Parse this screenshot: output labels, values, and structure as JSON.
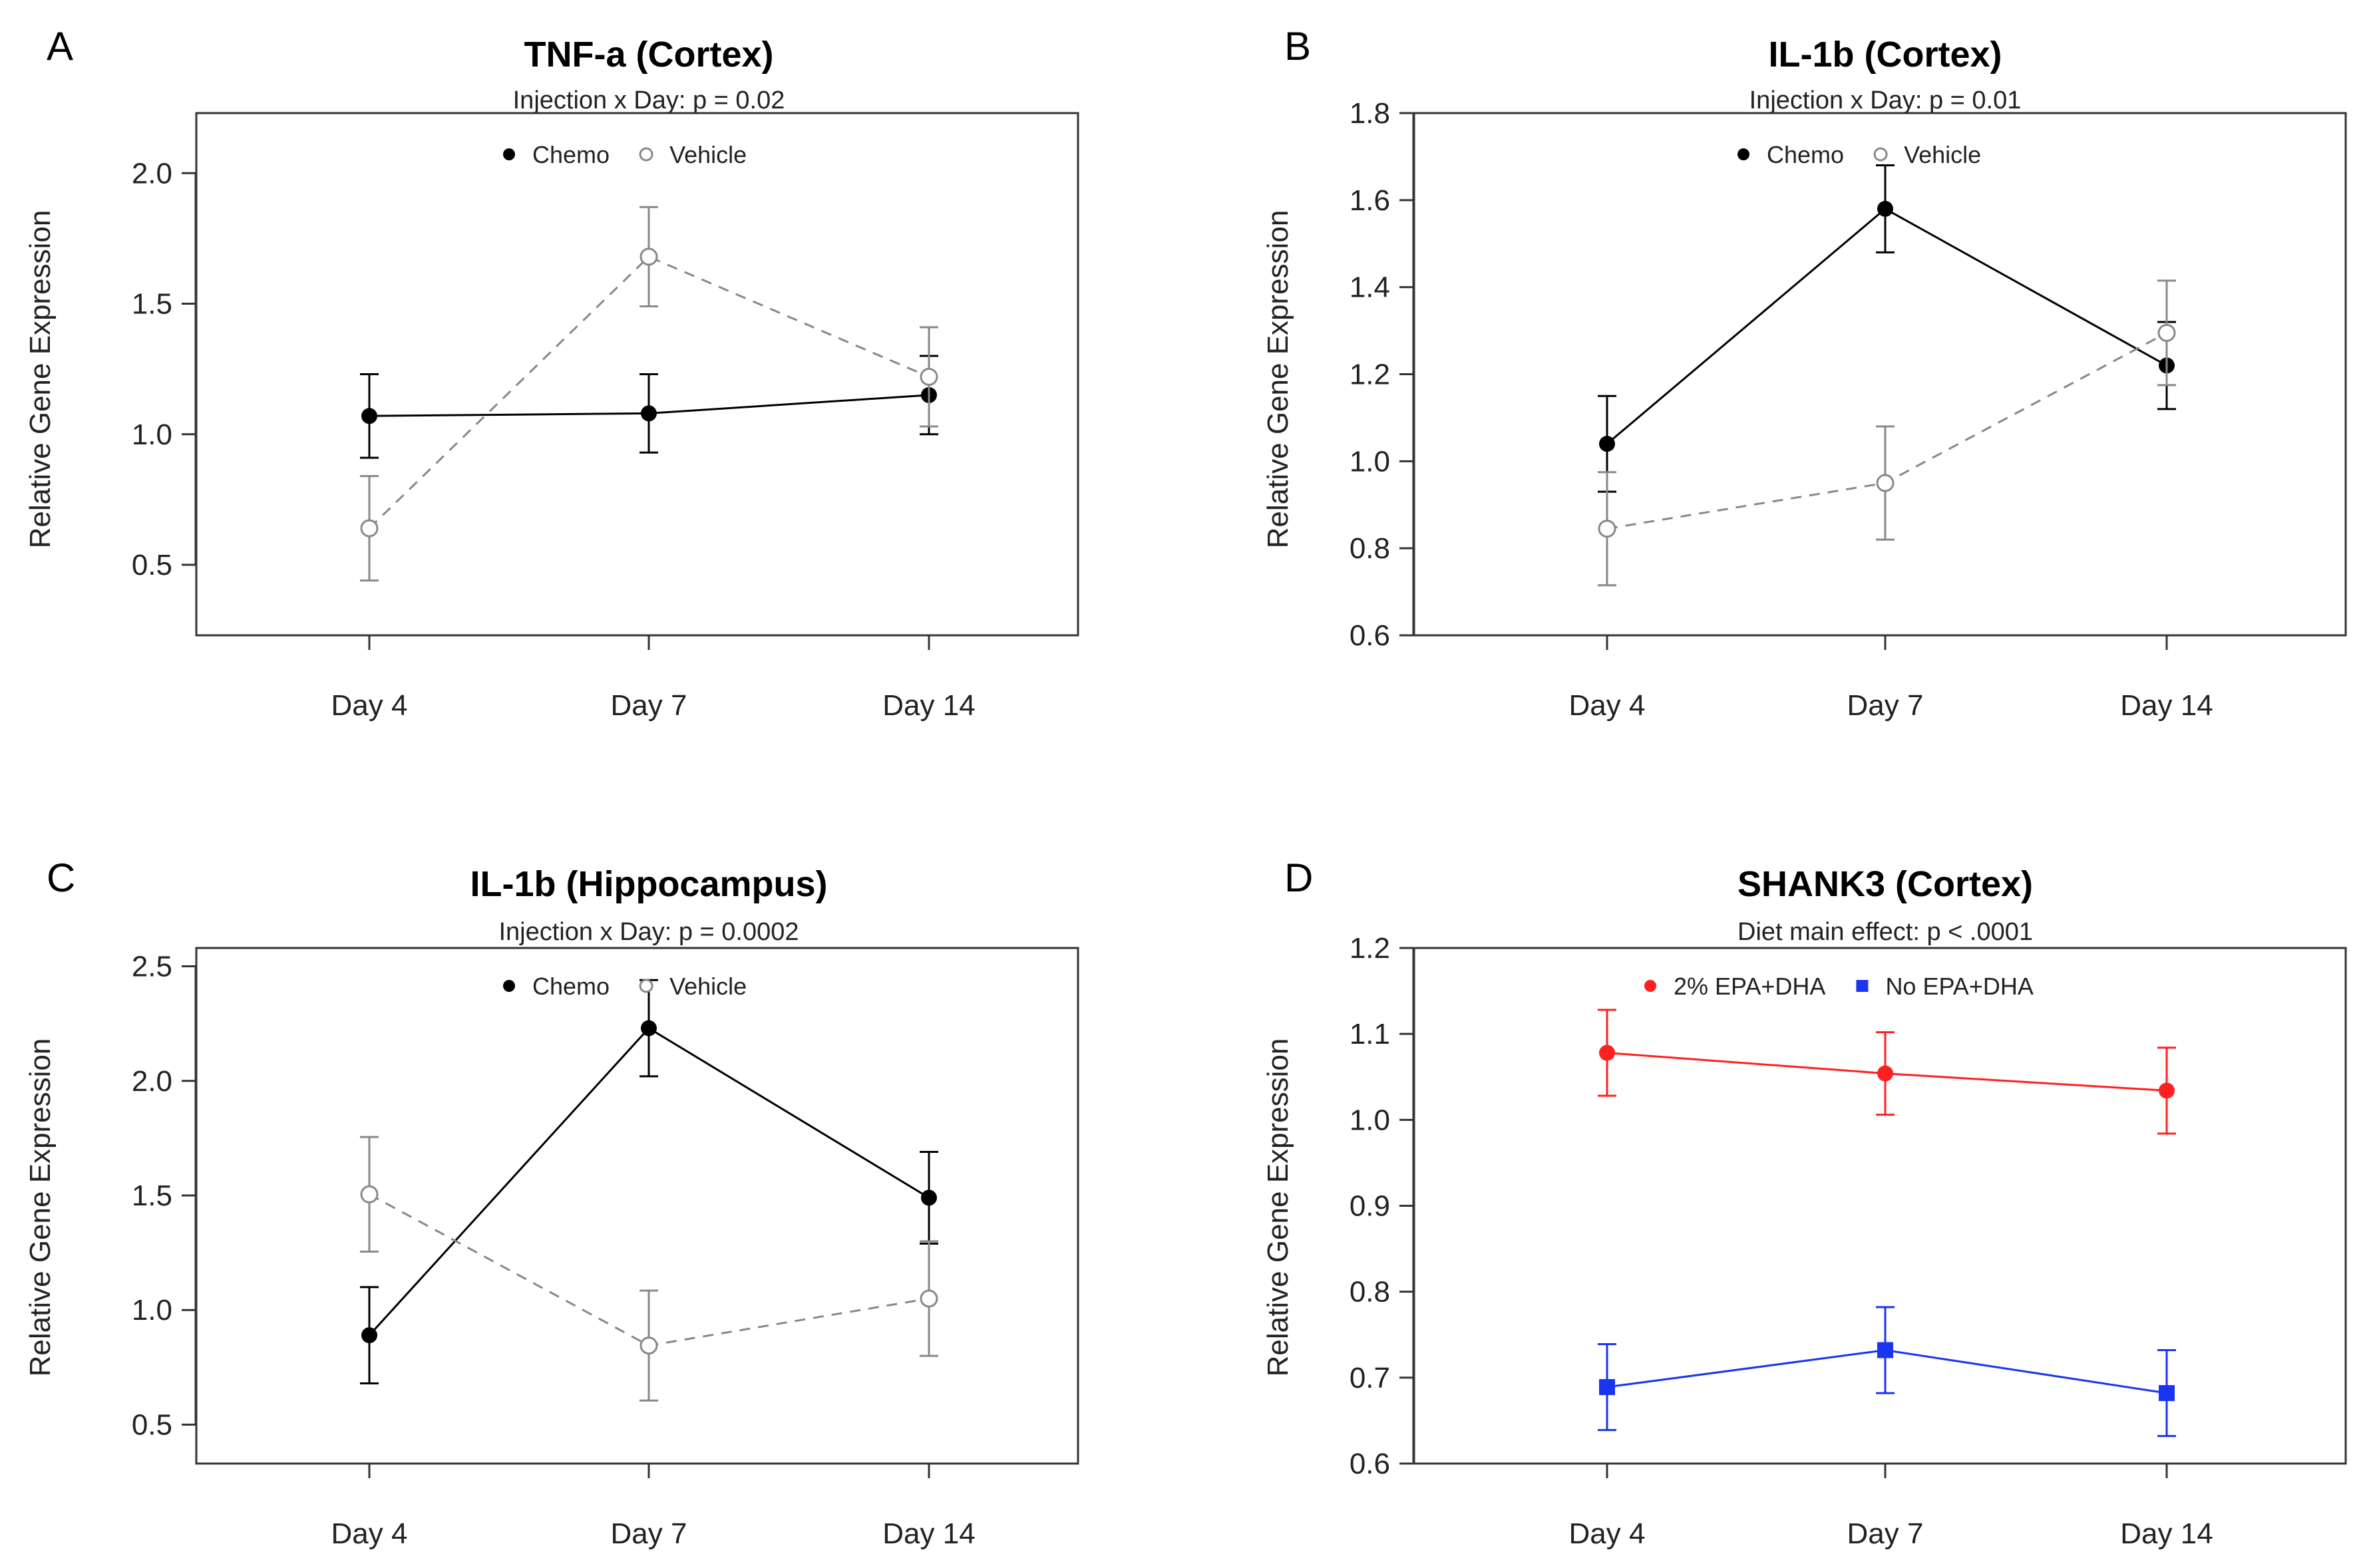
{
  "chart_data": [
    {
      "id": "A",
      "type": "line",
      "panel_label": "A",
      "title": "TNF-a (Cortex)",
      "subtitle": "Injection x Day: p = 0.02",
      "ylabel": "Relative Gene Expression",
      "categories": [
        "Day 4",
        "Day 7",
        "Day 14"
      ],
      "ylim": [
        0.23,
        2.23
      ],
      "yticks": [
        0.5,
        1.0,
        1.5,
        2.0
      ],
      "ytick_labels": [
        "0.5",
        "1.0",
        "1.5",
        "2.0"
      ],
      "legend": {
        "placement": "top-center"
      },
      "series": [
        {
          "name": "Chemo",
          "marker": "filled-circle",
          "color": "#000000",
          "line": "solid",
          "values": [
            1.07,
            1.08,
            1.15
          ],
          "errors": [
            0.16,
            0.15,
            0.15
          ]
        },
        {
          "name": "Vehicle",
          "marker": "open-circle",
          "color": "#888888",
          "line": "dashed",
          "values": [
            0.64,
            1.68,
            1.22
          ],
          "errors": [
            0.2,
            0.19,
            0.19
          ]
        }
      ]
    },
    {
      "id": "B",
      "type": "line",
      "panel_label": "B",
      "title": "IL-1b (Cortex)",
      "subtitle": "Injection x Day: p = 0.01",
      "ylabel": "Relative Gene Expression",
      "categories": [
        "Day 4",
        "Day 7",
        "Day 14"
      ],
      "ylim": [
        0.6,
        1.8
      ],
      "yticks": [
        0.6,
        0.8,
        1.0,
        1.2,
        1.4,
        1.6,
        1.8
      ],
      "ytick_labels": [
        "0.6",
        "0.8",
        "1.0",
        "1.2",
        "1.4",
        "1.6",
        "1.8"
      ],
      "legend": {
        "placement": "top-center"
      },
      "series": [
        {
          "name": "Chemo",
          "marker": "filled-circle",
          "color": "#000000",
          "line": "solid",
          "values": [
            1.04,
            1.58,
            1.22
          ],
          "errors": [
            0.11,
            0.1,
            0.1
          ]
        },
        {
          "name": "Vehicle",
          "marker": "open-circle",
          "color": "#888888",
          "line": "dashed",
          "values": [
            0.845,
            0.95,
            1.295
          ],
          "errors": [
            0.13,
            0.13,
            0.12
          ]
        }
      ]
    },
    {
      "id": "C",
      "type": "line",
      "panel_label": "C",
      "title": "IL-1b (Hippocampus)",
      "subtitle": "Injection x Day: p = 0.0002",
      "ylabel": "Relative Gene Expression",
      "categories": [
        "Day 4",
        "Day 7",
        "Day 14"
      ],
      "ylim": [
        0.33,
        2.58
      ],
      "yticks": [
        0.5,
        1.0,
        1.5,
        2.0,
        2.5
      ],
      "ytick_labels": [
        "0.5",
        "1.0",
        "1.5",
        "2.0",
        "2.5"
      ],
      "legend": {
        "placement": "top-center"
      },
      "series": [
        {
          "name": "Chemo",
          "marker": "filled-circle",
          "color": "#000000",
          "line": "solid",
          "values": [
            0.89,
            2.23,
            1.49
          ],
          "errors": [
            0.21,
            0.21,
            0.2
          ]
        },
        {
          "name": "Vehicle",
          "marker": "open-circle",
          "color": "#888888",
          "line": "dashed",
          "values": [
            1.505,
            0.845,
            1.05
          ],
          "errors": [
            0.25,
            0.24,
            0.25
          ]
        }
      ]
    },
    {
      "id": "D",
      "type": "line",
      "panel_label": "D",
      "title": "SHANK3 (Cortex)",
      "subtitle": "Diet main effect: p < .0001",
      "ylabel": "Relative Gene Expression",
      "categories": [
        "Day 4",
        "Day 7",
        "Day 14"
      ],
      "ylim": [
        0.6,
        1.2
      ],
      "yticks": [
        0.6,
        0.7,
        0.8,
        0.9,
        1.0,
        1.1,
        1.2
      ],
      "ytick_labels": [
        "0.6",
        "0.7",
        "0.8",
        "0.9",
        "1.0",
        "1.1",
        "1.2"
      ],
      "legend": {
        "placement": "top-center"
      },
      "series": [
        {
          "name": "2% EPA+DHA",
          "marker": "filled-circle",
          "color": "#ff2020",
          "line": "solid",
          "values": [
            1.078,
            1.054,
            1.034
          ],
          "errors": [
            0.05,
            0.048,
            0.05
          ]
        },
        {
          "name": "No EPA+DHA",
          "marker": "filled-square",
          "color": "#1a35f0",
          "line": "solid",
          "values": [
            0.689,
            0.732,
            0.682
          ],
          "errors": [
            0.05,
            0.05,
            0.05
          ]
        }
      ]
    }
  ]
}
